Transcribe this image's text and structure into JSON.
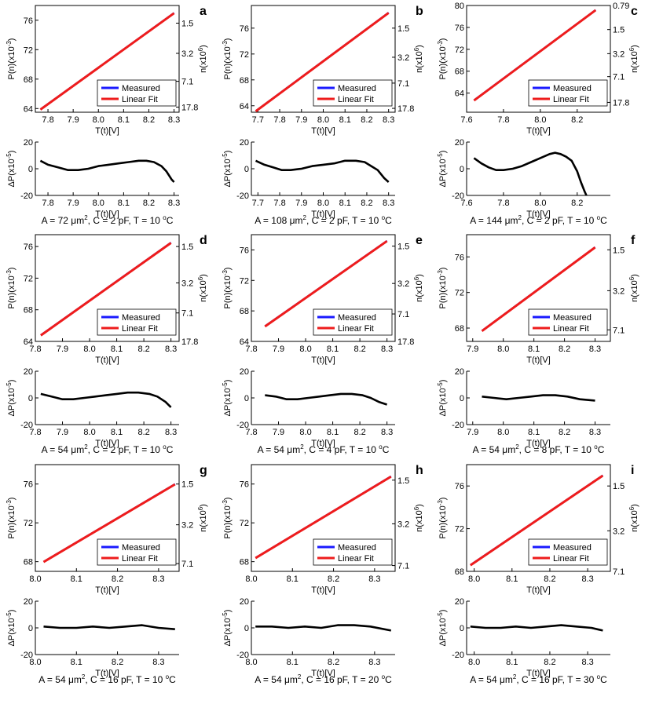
{
  "figure": {
    "legend_labels": {
      "measured": "Measured",
      "fit": "Linear Fit"
    },
    "colors": {
      "measured": "#1a1aff",
      "fit": "#ee1c1c",
      "residual": "#000000",
      "axis": "#000000"
    },
    "label_texts": {
      "p_axis": "P(n)(x10",
      "p_exp": "-3",
      "n_axis": "n(x10",
      "n_exp": "6",
      "dp_axis": "ΔP(x10",
      "dp_exp": "-5",
      "close_paren": ")",
      "x_axis": "T(t)[V]"
    }
  },
  "chart_data": [
    {
      "panel": "a",
      "type": "line",
      "caption": {
        "A": "72",
        "C": "2",
        "T": "10"
      },
      "top": {
        "xlim": [
          7.75,
          8.32
        ],
        "ylim": [
          63.5,
          78
        ],
        "xticks": [
          "7.8",
          "7.9",
          "8.0",
          "8.1",
          "8.2",
          "8.3"
        ],
        "yticks": [
          "64",
          "68",
          "72",
          "76"
        ],
        "nticks": [
          {
            "label": "1.5",
            "y": 75.6
          },
          {
            "label": "3.2",
            "y": 71.5
          },
          {
            "label": "7.1",
            "y": 67.7
          },
          {
            "label": "17.8",
            "y": 64.2
          }
        ],
        "x": [
          7.77,
          8.3
        ],
        "y": [
          63.9,
          77.0
        ]
      },
      "bottom": {
        "xlim": [
          7.75,
          8.32
        ],
        "ylim": [
          -20,
          20
        ],
        "xticks": [
          "7.8",
          "7.9",
          "8.0",
          "8.1",
          "8.2",
          "8.3"
        ],
        "yticks": [
          "-20",
          "0",
          "20"
        ],
        "x": [
          7.77,
          7.8,
          7.84,
          7.88,
          7.92,
          7.96,
          8.0,
          8.04,
          8.08,
          8.12,
          8.16,
          8.19,
          8.22,
          8.25,
          8.27,
          8.29,
          8.3
        ],
        "y": [
          6,
          3,
          1,
          -1,
          -1,
          0,
          2,
          3,
          4,
          5,
          6,
          6,
          5,
          2,
          -2,
          -8,
          -10
        ]
      }
    },
    {
      "panel": "b",
      "type": "line",
      "caption": {
        "A": "108",
        "C": "2",
        "T": "10"
      },
      "top": {
        "xlim": [
          7.67,
          8.33
        ],
        "ylim": [
          63,
          79.5
        ],
        "xticks": [
          "7.7",
          "7.8",
          "7.9",
          "8.0",
          "8.1",
          "8.2",
          "8.3"
        ],
        "yticks": [
          "64",
          "68",
          "72",
          "76"
        ],
        "nticks": [
          {
            "label": "1.5",
            "y": 76.0
          },
          {
            "label": "3.2",
            "y": 71.5
          },
          {
            "label": "7.1",
            "y": 67.5
          },
          {
            "label": "17.8",
            "y": 63.6
          }
        ],
        "x": [
          7.69,
          8.3
        ],
        "y": [
          63.2,
          78.4
        ]
      },
      "bottom": {
        "xlim": [
          7.67,
          8.33
        ],
        "ylim": [
          -20,
          20
        ],
        "xticks": [
          "7.7",
          "7.8",
          "7.9",
          "8.0",
          "8.1",
          "8.2",
          "8.3"
        ],
        "yticks": [
          "-20",
          "0",
          "20"
        ],
        "x": [
          7.69,
          7.73,
          7.77,
          7.81,
          7.85,
          7.9,
          7.95,
          8.0,
          8.05,
          8.1,
          8.15,
          8.19,
          8.22,
          8.25,
          8.28,
          8.3
        ],
        "y": [
          6,
          3,
          1,
          -1,
          -1,
          0,
          2,
          3,
          4,
          6,
          6,
          5,
          2,
          -1,
          -7,
          -10
        ]
      }
    },
    {
      "panel": "c",
      "type": "line",
      "caption": {
        "A": "144",
        "C": "2",
        "T": "10"
      },
      "top": {
        "xlim": [
          7.6,
          8.38
        ],
        "ylim": [
          60.5,
          80
        ],
        "xticks": [
          "7.6",
          "7.8",
          "8.0",
          "8.2"
        ],
        "yticks": [
          "64",
          "68",
          "72",
          "76",
          "80"
        ],
        "nticks": [
          {
            "label": "0.79",
            "y": 80.0
          },
          {
            "label": "1.5",
            "y": 75.6
          },
          {
            "label": "3.2",
            "y": 71.2
          },
          {
            "label": "7.1",
            "y": 67.0
          },
          {
            "label": "17.8",
            "y": 62.3
          }
        ],
        "x": [
          7.64,
          8.3
        ],
        "y": [
          62.7,
          79.2
        ]
      },
      "bottom": {
        "xlim": [
          7.6,
          8.38
        ],
        "ylim": [
          -20,
          20
        ],
        "xticks": [
          "7.6",
          "7.8",
          "8.0",
          "8.2"
        ],
        "yticks": [
          "-20",
          "0",
          "20"
        ],
        "x": [
          7.64,
          7.68,
          7.72,
          7.76,
          7.8,
          7.85,
          7.9,
          7.95,
          8.0,
          8.05,
          8.08,
          8.11,
          8.14,
          8.17,
          8.2,
          8.22,
          8.24,
          8.25
        ],
        "y": [
          8,
          4,
          1,
          -1,
          -1,
          0,
          2,
          5,
          8,
          11,
          12,
          11,
          9,
          6,
          -2,
          -10,
          -17,
          -20
        ]
      }
    },
    {
      "panel": "d",
      "type": "line",
      "caption": {
        "A": "54",
        "C": "2",
        "T": "10"
      },
      "top": {
        "xlim": [
          7.8,
          8.33
        ],
        "ylim": [
          64,
          77.5
        ],
        "xticks": [
          "7.8",
          "7.9",
          "8.0",
          "8.1",
          "8.2",
          "8.3"
        ],
        "yticks": [
          "64",
          "68",
          "72",
          "76"
        ],
        "nticks": [
          {
            "label": "1.5",
            "y": 76.0
          },
          {
            "label": "3.2",
            "y": 71.4
          },
          {
            "label": "7.1",
            "y": 67.6
          },
          {
            "label": "17.8",
            "y": 64.0
          }
        ],
        "x": [
          7.82,
          8.3
        ],
        "y": [
          64.8,
          76.5
        ]
      },
      "bottom": {
        "xlim": [
          7.8,
          8.33
        ],
        "ylim": [
          -20,
          20
        ],
        "xticks": [
          "7.8",
          "7.9",
          "8.0",
          "8.1",
          "8.2",
          "8.3"
        ],
        "yticks": [
          "-20",
          "0",
          "20"
        ],
        "x": [
          7.82,
          7.86,
          7.9,
          7.94,
          7.98,
          8.02,
          8.06,
          8.1,
          8.14,
          8.18,
          8.22,
          8.25,
          8.28,
          8.3
        ],
        "y": [
          3,
          1,
          -1,
          -1,
          0,
          1,
          2,
          3,
          4,
          4,
          3,
          1,
          -3,
          -7
        ]
      }
    },
    {
      "panel": "e",
      "type": "line",
      "caption": {
        "A": "54",
        "C": "4",
        "T": "10"
      },
      "top": {
        "xlim": [
          7.8,
          8.33
        ],
        "ylim": [
          64,
          78
        ],
        "xticks": [
          "7.8",
          "7.9",
          "8.0",
          "8.1",
          "8.2",
          "8.3"
        ],
        "yticks": [
          "64",
          "68",
          "72",
          "76"
        ],
        "nticks": [
          {
            "label": "1.5",
            "y": 76.5
          },
          {
            "label": "3.2",
            "y": 71.6
          },
          {
            "label": "7.1",
            "y": 67.6
          },
          {
            "label": "17.8",
            "y": 64.0
          }
        ],
        "x": [
          7.85,
          8.3
        ],
        "y": [
          66.0,
          77.2
        ]
      },
      "bottom": {
        "xlim": [
          7.8,
          8.33
        ],
        "ylim": [
          -20,
          20
        ],
        "xticks": [
          "7.8",
          "7.9",
          "8.0",
          "8.1",
          "8.2",
          "8.3"
        ],
        "yticks": [
          "-20",
          "0",
          "20"
        ],
        "x": [
          7.85,
          7.89,
          7.93,
          7.97,
          8.01,
          8.05,
          8.09,
          8.13,
          8.17,
          8.21,
          8.24,
          8.27,
          8.3
        ],
        "y": [
          2,
          1,
          -1,
          -1,
          0,
          1,
          2,
          3,
          3,
          2,
          0,
          -3,
          -5
        ]
      }
    },
    {
      "panel": "f",
      "type": "line",
      "caption": {
        "A": "54",
        "C": "8",
        "T": "10"
      },
      "top": {
        "xlim": [
          7.88,
          8.35
        ],
        "ylim": [
          66.5,
          78.5
        ],
        "xticks": [
          "7.9",
          "8.0",
          "8.1",
          "8.2",
          "8.3"
        ],
        "yticks": [
          "68",
          "72",
          "76"
        ],
        "nticks": [
          {
            "label": "1.5",
            "y": 76.8
          },
          {
            "label": "3.2",
            "y": 72.2
          },
          {
            "label": "7.1",
            "y": 67.8
          }
        ],
        "x": [
          7.93,
          8.3
        ],
        "y": [
          67.7,
          77.1
        ]
      },
      "bottom": {
        "xlim": [
          7.88,
          8.35
        ],
        "ylim": [
          -20,
          20
        ],
        "xticks": [
          "7.9",
          "8.0",
          "8.1",
          "8.2",
          "8.3"
        ],
        "yticks": [
          "-20",
          "0",
          "20"
        ],
        "x": [
          7.93,
          7.97,
          8.01,
          8.05,
          8.09,
          8.13,
          8.17,
          8.21,
          8.25,
          8.3
        ],
        "y": [
          1,
          0,
          -1,
          0,
          1,
          2,
          2,
          1,
          -1,
          -2
        ]
      }
    },
    {
      "panel": "g",
      "type": "line",
      "caption": {
        "A": "54",
        "C": "16",
        "T": "10"
      },
      "top": {
        "xlim": [
          8.0,
          8.35
        ],
        "ylim": [
          67,
          78
        ],
        "xticks": [
          "8.0",
          "8.1",
          "8.2",
          "8.3"
        ],
        "yticks": [
          "68",
          "72",
          "76"
        ],
        "nticks": [
          {
            "label": "1.5",
            "y": 76.0
          },
          {
            "label": "3.2",
            "y": 71.8
          },
          {
            "label": "7.1",
            "y": 67.8
          }
        ],
        "x": [
          8.02,
          8.34
        ],
        "y": [
          68.0,
          76.0
        ]
      },
      "bottom": {
        "xlim": [
          8.0,
          8.35
        ],
        "ylim": [
          -20,
          20
        ],
        "xticks": [
          "8.0",
          "8.1",
          "8.2",
          "8.3"
        ],
        "yticks": [
          "-20",
          "0",
          "20"
        ],
        "x": [
          8.02,
          8.06,
          8.1,
          8.14,
          8.18,
          8.22,
          8.26,
          8.3,
          8.34
        ],
        "y": [
          1,
          0,
          0,
          1,
          0,
          1,
          2,
          0,
          -1
        ]
      }
    },
    {
      "panel": "h",
      "type": "line",
      "caption": {
        "A": "54",
        "C": "16",
        "T": "20"
      },
      "top": {
        "xlim": [
          8.0,
          8.35
        ],
        "ylim": [
          67,
          78
        ],
        "xticks": [
          "8.0",
          "8.1",
          "8.2",
          "8.3"
        ],
        "yticks": [
          "68",
          "72",
          "76"
        ],
        "nticks": [
          {
            "label": "1.5",
            "y": 76.4
          },
          {
            "label": "3.2",
            "y": 71.9
          },
          {
            "label": "7.1",
            "y": 67.6
          }
        ],
        "x": [
          8.01,
          8.34
        ],
        "y": [
          68.4,
          76.8
        ]
      },
      "bottom": {
        "xlim": [
          8.0,
          8.35
        ],
        "ylim": [
          -20,
          20
        ],
        "xticks": [
          "8.0",
          "8.1",
          "8.2",
          "8.3"
        ],
        "yticks": [
          "-20",
          "0",
          "20"
        ],
        "x": [
          8.01,
          8.05,
          8.09,
          8.13,
          8.17,
          8.21,
          8.25,
          8.29,
          8.34
        ],
        "y": [
          1,
          1,
          0,
          1,
          0,
          2,
          2,
          1,
          -2
        ]
      }
    },
    {
      "panel": "i",
      "type": "line",
      "caption": {
        "A": "54",
        "C": "16",
        "T": "30"
      },
      "top": {
        "xlim": [
          7.98,
          8.36
        ],
        "ylim": [
          68,
          78
        ],
        "xticks": [
          "8.0",
          "8.1",
          "8.2",
          "8.3"
        ],
        "yticks": [
          "68",
          "72",
          "76"
        ],
        "nticks": [
          {
            "label": "1.5",
            "y": 76.0
          },
          {
            "label": "3.2",
            "y": 71.8
          },
          {
            "label": "7.1",
            "y": 68.0
          }
        ],
        "x": [
          7.99,
          8.34
        ],
        "y": [
          68.6,
          77.0
        ]
      },
      "bottom": {
        "xlim": [
          7.98,
          8.36
        ],
        "ylim": [
          -20,
          20
        ],
        "xticks": [
          "8.0",
          "8.1",
          "8.2",
          "8.3"
        ],
        "yticks": [
          "-20",
          "0",
          "20"
        ],
        "x": [
          7.99,
          8.03,
          8.07,
          8.11,
          8.15,
          8.19,
          8.23,
          8.27,
          8.31,
          8.34
        ],
        "y": [
          1,
          0,
          0,
          1,
          0,
          1,
          2,
          1,
          0,
          -2
        ]
      }
    }
  ]
}
